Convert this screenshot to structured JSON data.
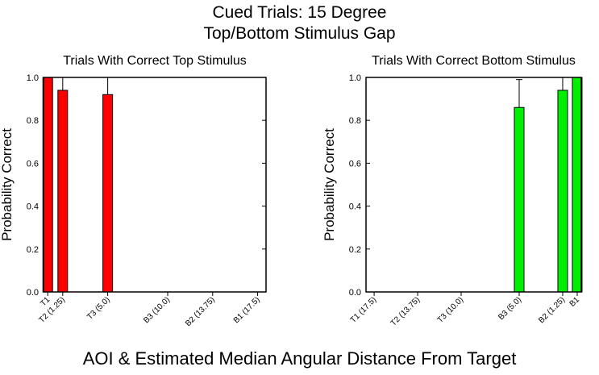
{
  "title_lines": [
    "Cued Trials: 15 Degree",
    "Top/Bottom Stimulus Gap"
  ],
  "xlabel": "AOI & Estimated Median Angular Distance From Target",
  "chart_data": [
    {
      "type": "bar",
      "title": "Trials With Correct Top Stimulus",
      "ylabel": "Probability Correct",
      "xlabel": "AOI & Estimated Median Angular Distance From Target",
      "ylim": [
        0,
        1.0
      ],
      "yticks": [
        "0.0",
        "0.2",
        "0.4",
        "0.6",
        "0.8",
        "1.0"
      ],
      "grid": false,
      "categories": [
        "T1",
        "T2 (1.25)",
        "T3 (5.0)",
        "B3 (10.0)",
        "B2 (13.75)",
        "B1 (17.5)"
      ],
      "x": [
        0,
        1.25,
        5.0,
        10.0,
        13.75,
        17.5
      ],
      "xlim": [
        -0.35,
        18.2
      ],
      "values": [
        1.0,
        0.94,
        0.92,
        null,
        null,
        null
      ],
      "error_upper": [
        null,
        1.0,
        1.0,
        null,
        null,
        null
      ],
      "color": "#ff0000"
    },
    {
      "type": "bar",
      "title": "Trials With Correct Bottom Stimulus",
      "ylabel": "Probability Correct",
      "xlabel": "AOI & Estimated Median Angular Distance From Target",
      "ylim": [
        0,
        1.0
      ],
      "yticks": [
        "0.0",
        "0.2",
        "0.4",
        "0.6",
        "0.8",
        "1.0"
      ],
      "grid": false,
      "categories": [
        "T1 (17.5)",
        "T2 (13.75)",
        "T3 (10.0)",
        "B3 (5.0)",
        "B2 (1.25)",
        "B1"
      ],
      "x": [
        -17.5,
        -13.75,
        -10.0,
        -5.0,
        -1.25,
        0
      ],
      "xlim": [
        -18.2,
        0.35
      ],
      "values": [
        null,
        null,
        null,
        0.86,
        0.94,
        1.0
      ],
      "error_upper": [
        null,
        null,
        null,
        0.99,
        1.0,
        null
      ],
      "color": "#00ee00"
    }
  ]
}
